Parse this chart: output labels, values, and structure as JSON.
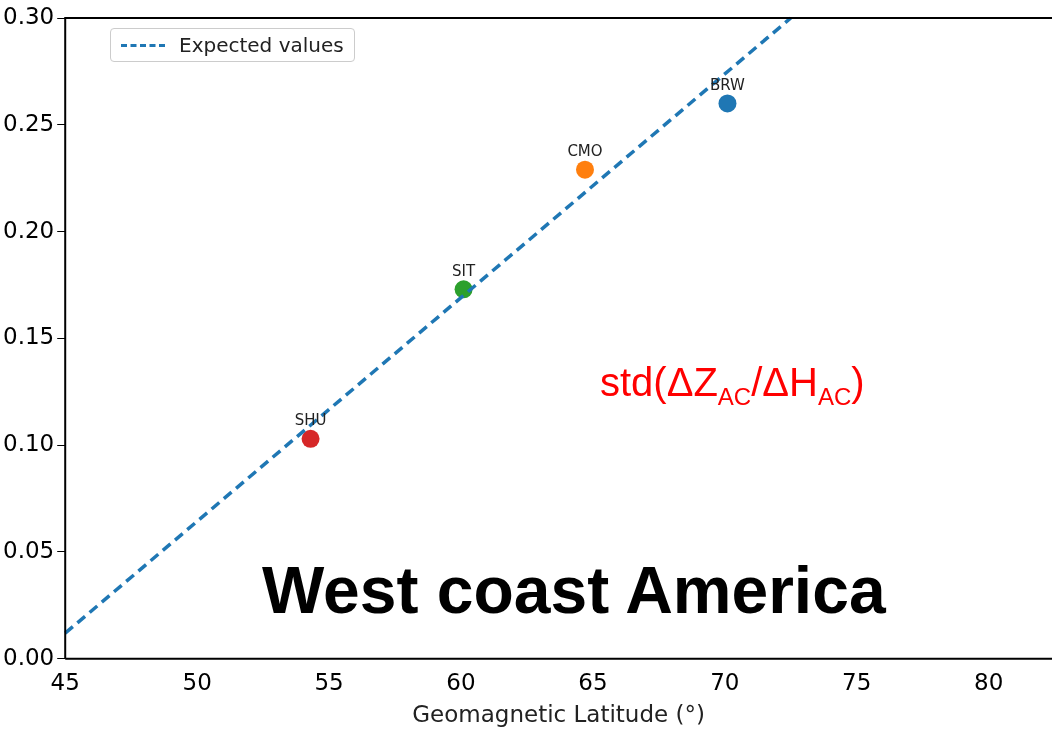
{
  "chart_data": {
    "type": "scatter",
    "xlabel": "Geomagnetic Latitude (°)",
    "xlim": [
      45,
      82.4
    ],
    "xticks": [
      45,
      50,
      55,
      60,
      65,
      70,
      75,
      80
    ],
    "ylim": [
      0,
      0.3
    ],
    "yticks": [
      {
        "value": 0,
        "label": "0.00"
      },
      {
        "value": 0.05,
        "label": "0.05"
      },
      {
        "value": 0.1,
        "label": "0.10"
      },
      {
        "value": 0.15,
        "label": "0.15"
      },
      {
        "value": 0.2,
        "label": "0.20"
      },
      {
        "value": 0.25,
        "label": "0.25"
      },
      {
        "value": 0.3,
        "label": "0.30"
      }
    ],
    "grid": false,
    "legend": "top left",
    "marker": "circle",
    "series": [
      {
        "name": "Expected values",
        "type": "line",
        "line_style": "dashed",
        "marker": "none",
        "color": "#1f77b4",
        "x": [
          45,
          72.5
        ],
        "values": [
          0.012,
          0.3
        ]
      },
      {
        "name": "BRW",
        "color": "#1f77b4",
        "x": [
          70.1
        ],
        "values": [
          0.26
        ]
      },
      {
        "name": "CMO",
        "color": "#ff7f0e",
        "x": [
          64.7
        ],
        "values": [
          0.229
        ]
      },
      {
        "name": "SIT",
        "color": "#2ca02c",
        "x": [
          60.1
        ],
        "values": [
          0.173
        ]
      },
      {
        "name": "SHU",
        "color": "#d62728",
        "x": [
          54.3
        ],
        "values": [
          0.103
        ]
      }
    ],
    "annotations": [
      "std(ΔZ$_{AC}$/ΔH$_{AC}$)",
      "West coast America"
    ]
  }
}
